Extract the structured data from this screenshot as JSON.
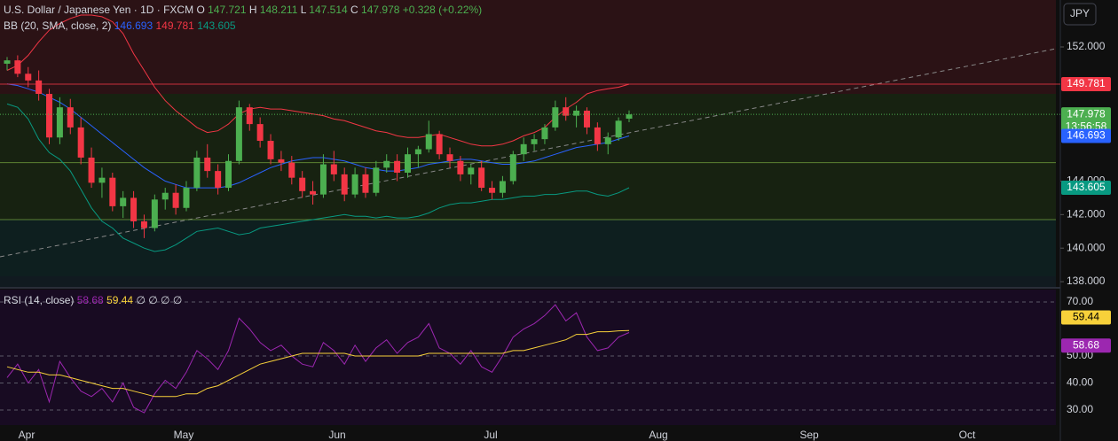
{
  "chart_data": {
    "type": "candlestick",
    "symbol": "U.S. Dollar / Japanese Yen · 1D · FXCM",
    "ohlc_labels": [
      "O",
      "H",
      "L",
      "C"
    ],
    "change": "+0.328 (+0.22%)",
    "currency": "JPY",
    "countdown": "13:56:58",
    "up_color": "#4caf50",
    "down_color": "#f23645",
    "ylim": [
      137.74,
      154.8
    ],
    "yticks": [
      {
        "value": 138,
        "label": "138.000"
      },
      {
        "value": 140,
        "label": "140.000"
      },
      {
        "value": 142,
        "label": "142.000"
      },
      {
        "value": 144,
        "label": "144.000"
      },
      {
        "value": 152,
        "label": "152.000"
      }
    ],
    "levels": [
      145.1,
      141.7
    ],
    "x_labels": [
      "Apr",
      "May",
      "Jun",
      "Jul",
      "Aug",
      "Sep",
      "Oct"
    ],
    "candles": [
      [
        151.0,
        151.4,
        150.6,
        151.2
      ],
      [
        151.2,
        151.5,
        150.2,
        150.4
      ],
      [
        150.4,
        150.8,
        149.6,
        150.0
      ],
      [
        150.0,
        150.6,
        148.8,
        149.2
      ],
      [
        149.2,
        149.5,
        146.2,
        146.6
      ],
      [
        146.6,
        149.0,
        146.2,
        148.4
      ],
      [
        148.4,
        148.9,
        146.8,
        147.2
      ],
      [
        147.2,
        147.8,
        145.0,
        145.4
      ],
      [
        145.4,
        146.0,
        143.6,
        143.9
      ],
      [
        143.9,
        144.8,
        143.0,
        144.2
      ],
      [
        144.2,
        144.5,
        142.2,
        142.5
      ],
      [
        142.5,
        143.4,
        141.8,
        143.0
      ],
      [
        143.0,
        143.4,
        141.2,
        141.6
      ],
      [
        141.6,
        142.0,
        140.6,
        141.2
      ],
      [
        141.2,
        143.2,
        141.0,
        142.9
      ],
      [
        142.9,
        143.6,
        142.3,
        143.3
      ],
      [
        143.3,
        143.8,
        142.0,
        142.4
      ],
      [
        142.4,
        144.0,
        142.2,
        143.6
      ],
      [
        143.6,
        145.8,
        143.4,
        145.4
      ],
      [
        145.4,
        146.2,
        144.2,
        144.6
      ],
      [
        144.6,
        145.0,
        143.2,
        143.6
      ],
      [
        143.6,
        145.6,
        143.4,
        145.2
      ],
      [
        145.2,
        148.8,
        145.0,
        148.4
      ],
      [
        148.4,
        148.6,
        147.0,
        147.4
      ],
      [
        147.4,
        147.8,
        146.0,
        146.4
      ],
      [
        146.4,
        146.8,
        145.0,
        145.3
      ],
      [
        145.3,
        145.8,
        144.6,
        145.1
      ],
      [
        145.1,
        145.5,
        143.8,
        144.2
      ],
      [
        144.2,
        144.6,
        143.0,
        143.4
      ],
      [
        143.4,
        144.0,
        142.6,
        143.2
      ],
      [
        143.2,
        145.6,
        143.0,
        145.0
      ],
      [
        145.0,
        145.8,
        144.0,
        144.4
      ],
      [
        144.4,
        144.8,
        142.8,
        143.2
      ],
      [
        143.2,
        144.8,
        143.0,
        144.4
      ],
      [
        144.4,
        144.8,
        143.0,
        143.3
      ],
      [
        143.3,
        145.2,
        143.1,
        144.8
      ],
      [
        144.8,
        145.6,
        144.5,
        145.2
      ],
      [
        145.2,
        145.6,
        144.0,
        144.5
      ],
      [
        144.5,
        146.0,
        144.2,
        145.6
      ],
      [
        145.6,
        146.1,
        144.8,
        145.9
      ],
      [
        145.9,
        147.6,
        145.7,
        146.8
      ],
      [
        146.8,
        147.0,
        145.3,
        145.6
      ],
      [
        145.6,
        146.0,
        144.8,
        145.2
      ],
      [
        145.2,
        145.5,
        144.0,
        144.4
      ],
      [
        144.4,
        145.0,
        143.8,
        144.8
      ],
      [
        144.8,
        145.2,
        143.4,
        143.6
      ],
      [
        143.6,
        144.0,
        142.9,
        143.3
      ],
      [
        143.3,
        144.3,
        143.0,
        144.0
      ],
      [
        144.0,
        145.8,
        143.8,
        145.6
      ],
      [
        145.6,
        146.6,
        145.2,
        146.2
      ],
      [
        146.2,
        146.8,
        145.8,
        146.5
      ],
      [
        146.5,
        147.4,
        146.2,
        147.2
      ],
      [
        147.2,
        148.8,
        147.0,
        148.4
      ],
      [
        148.4,
        149.0,
        147.6,
        147.9
      ],
      [
        147.9,
        148.5,
        147.2,
        148.2
      ],
      [
        148.2,
        148.4,
        146.8,
        147.2
      ],
      [
        147.2,
        147.5,
        145.8,
        146.2
      ],
      [
        146.2,
        146.9,
        145.6,
        146.6
      ],
      [
        146.6,
        147.8,
        146.4,
        147.6
      ],
      [
        147.721,
        148.211,
        147.514,
        147.978
      ]
    ],
    "bb": {
      "name": "BB (20, SMA, close, 2)",
      "series": [
        {
          "color": "#2962ff",
          "values": [
            149.8,
            149.7,
            149.5,
            149.3,
            149.0,
            148.7,
            148.3,
            147.8,
            147.3,
            146.8,
            146.3,
            145.8,
            145.3,
            144.8,
            144.4,
            144.0,
            143.8,
            143.6,
            143.6,
            143.6,
            143.6,
            143.7,
            143.9,
            144.2,
            144.5,
            144.8,
            145.0,
            145.2,
            145.3,
            145.4,
            145.4,
            145.3,
            145.2,
            145.0,
            144.8,
            144.7,
            144.6,
            144.6,
            144.7,
            144.8,
            145.0,
            145.1,
            145.2,
            145.3,
            145.3,
            145.2,
            145.1,
            145.0,
            145.0,
            145.1,
            145.2,
            145.4,
            145.6,
            145.8,
            146.0,
            146.1,
            146.2,
            146.3,
            146.5,
            146.693
          ]
        },
        {
          "color": "#f23645",
          "values": [
            150.6,
            150.9,
            151.5,
            152.3,
            153.0,
            153.4,
            153.7,
            153.9,
            153.9,
            153.8,
            153.5,
            152.8,
            151.6,
            150.6,
            149.6,
            148.8,
            148.2,
            147.7,
            147.2,
            146.9,
            147.0,
            147.4,
            148.0,
            148.3,
            148.4,
            148.3,
            148.3,
            148.2,
            148.1,
            148.0,
            147.9,
            147.7,
            147.6,
            147.4,
            147.2,
            147.0,
            146.9,
            146.7,
            146.6,
            146.6,
            146.7,
            146.8,
            146.6,
            146.4,
            146.2,
            146.1,
            146.1,
            146.2,
            146.4,
            146.7,
            146.9,
            147.2,
            147.8,
            148.3,
            148.7,
            149.2,
            149.4,
            149.5,
            149.6,
            149.781
          ]
        },
        {
          "color": "#089981",
          "values": [
            148.6,
            148.4,
            147.7,
            146.5,
            145.7,
            145.3,
            144.6,
            143.5,
            142.4,
            141.6,
            141.2,
            140.6,
            140.3,
            140.0,
            139.8,
            139.9,
            140.2,
            140.6,
            141.0,
            141.1,
            141.2,
            141.0,
            140.8,
            140.9,
            141.2,
            141.3,
            141.4,
            141.5,
            141.6,
            141.7,
            141.8,
            141.9,
            142.0,
            141.9,
            141.9,
            141.8,
            141.9,
            141.8,
            141.8,
            141.9,
            142.1,
            142.4,
            142.6,
            142.7,
            142.7,
            142.8,
            142.9,
            142.9,
            143.0,
            143.1,
            143.1,
            143.2,
            143.2,
            143.3,
            143.4,
            143.4,
            143.2,
            143.1,
            143.3,
            143.605
          ]
        }
      ]
    },
    "rsi": {
      "name": "RSI (14, close)",
      "extra": "∅ ∅ ∅ ∅",
      "ylim": [
        24.43,
        74.59
      ],
      "yticks": [
        {
          "value": 30,
          "label": "30.00"
        },
        {
          "value": 40,
          "label": "40.00"
        },
        {
          "value": 50,
          "label": "50.00"
        },
        {
          "value": 70,
          "label": "70.00"
        }
      ],
      "series": [
        {
          "color": "#9c27b0",
          "values": [
            42,
            47,
            40,
            45,
            33,
            48,
            42,
            37,
            35,
            38,
            33,
            40,
            31,
            29,
            36,
            41,
            38,
            44,
            52,
            49,
            45,
            52,
            64,
            60,
            55,
            52,
            54,
            50,
            47,
            46,
            55,
            52,
            47,
            54,
            48,
            53,
            56,
            51,
            55,
            57,
            62,
            53,
            51,
            47,
            52,
            46,
            44,
            50,
            57,
            60,
            62,
            65,
            69,
            63,
            66,
            57,
            52,
            53,
            57,
            58.68
          ]
        },
        {
          "color": "#f7d13a",
          "values": [
            46,
            45,
            44,
            44,
            43,
            43,
            42,
            41,
            40,
            39,
            38,
            38,
            37,
            36,
            35,
            35,
            35,
            36,
            36,
            38,
            39,
            41,
            43,
            45,
            47,
            48,
            49,
            50,
            51,
            51,
            51,
            51,
            51,
            50,
            50,
            50,
            50,
            50,
            50,
            50,
            51,
            51,
            51,
            51,
            51,
            51,
            51,
            51,
            52,
            52,
            53,
            54,
            55,
            56,
            58,
            58,
            59,
            59,
            59.3,
            59.44
          ]
        }
      ]
    }
  }
}
